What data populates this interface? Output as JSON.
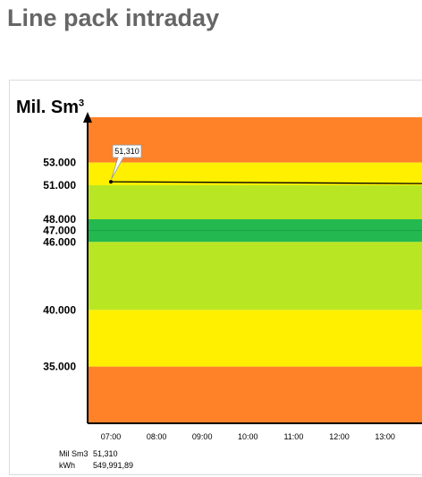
{
  "page": {
    "title": "Line pack intraday"
  },
  "chart_data": {
    "type": "line",
    "unit_label": "Mil. Sm",
    "unit_superscript": "3",
    "ylim": [
      30,
      57
    ],
    "y_ticks": [
      "53.000",
      "51.000",
      "48.000",
      "47.000",
      "46.000",
      "40.000",
      "35.000"
    ],
    "y_tick_values": [
      53,
      51,
      48,
      47,
      46,
      40,
      35
    ],
    "x_categories": [
      "07:00",
      "08:00",
      "09:00",
      "10:00",
      "11:00",
      "12:00",
      "13:00"
    ],
    "bands": [
      {
        "from": 53,
        "to": 57,
        "color": "#ff8228"
      },
      {
        "from": 51,
        "to": 53,
        "color": "#fff000"
      },
      {
        "from": 48,
        "to": 51,
        "color": "#b9e623"
      },
      {
        "from": 46,
        "to": 48,
        "color": "#23b950"
      },
      {
        "from": 40,
        "to": 46,
        "color": "#b9e623"
      },
      {
        "from": 35,
        "to": 40,
        "color": "#fff000"
      },
      {
        "from": 30,
        "to": 35,
        "color": "#ff8228"
      }
    ],
    "band_divider_value": 47,
    "band_divider_color": "#1aa045",
    "series": [
      {
        "values": [
          51.31
        ],
        "color": "#000000",
        "data_label": "51,310",
        "extends_to": 51.15
      }
    ],
    "grid": false
  },
  "footer": {
    "rows": [
      {
        "label": "Mil Sm3",
        "value": "51,310"
      },
      {
        "label": "kWh",
        "value": "549,991,89"
      }
    ]
  }
}
